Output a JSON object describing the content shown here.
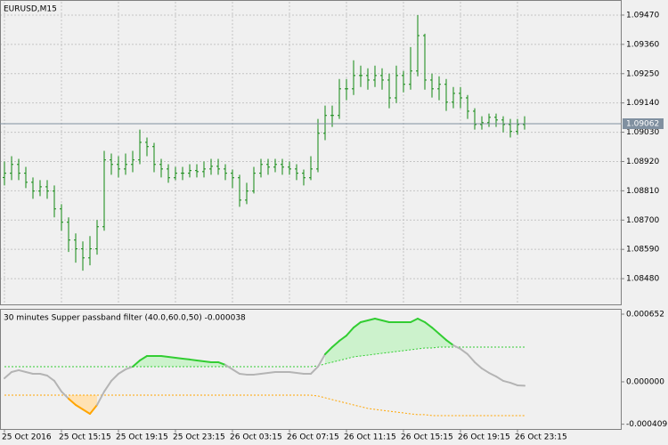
{
  "chart_data": [
    {
      "type": "ohlc",
      "title": "EURUSD,M15",
      "categories": [
        "25 Oct 2016",
        null,
        null,
        null,
        null,
        null,
        null,
        null,
        "25 Oct 15:15",
        null,
        null,
        null,
        null,
        null,
        null,
        null,
        "25 Oct 19:15",
        null,
        null,
        null,
        null,
        null,
        null,
        null,
        "25 Oct 23:15",
        null,
        null,
        null,
        null,
        null,
        null,
        null,
        "26 Oct 03:15",
        null,
        null,
        null,
        null,
        null,
        null,
        null,
        "26 Oct 07:15",
        null,
        null,
        null,
        null,
        null,
        null,
        null,
        "26 Oct 11:15",
        null,
        null,
        null,
        null,
        null,
        null,
        null,
        "26 Oct 15:15",
        null,
        null,
        null,
        null,
        null,
        null,
        null,
        "26 Oct 19:15",
        null,
        null,
        null,
        null,
        null,
        null,
        null,
        "26 Oct 23:15",
        null
      ],
      "open": [
        1.0886,
        1.08876,
        1.08909,
        1.08876,
        1.08842,
        1.08809,
        1.08825,
        1.08809,
        1.08742,
        1.08692,
        1.08625,
        1.08592,
        1.08558,
        1.08592,
        1.08675,
        1.08926,
        1.08909,
        1.08892,
        1.08909,
        1.08926,
        1.08992,
        1.08976,
        1.08909,
        1.08892,
        1.08859,
        1.08876,
        1.08876,
        1.08886,
        1.08882,
        1.08892,
        1.08902,
        1.08892,
        1.08876,
        1.08859,
        1.08775,
        1.08809,
        1.08876,
        1.08909,
        1.08899,
        1.08909,
        1.08899,
        1.08892,
        1.08876,
        1.08859,
        1.08892,
        1.09026,
        1.09093,
        1.09093,
        1.09193,
        1.09193,
        1.09243,
        1.09243,
        1.09226,
        1.09243,
        1.09226,
        1.09159,
        1.09243,
        1.0921,
        1.0926,
        1.09393,
        1.09226,
        1.09193,
        1.0921,
        1.09143,
        1.09176,
        1.09159,
        1.09109,
        1.09059,
        1.09066,
        1.09086,
        1.09076,
        1.09059,
        1.09033,
        1.09059
      ],
      "high": [
        1.0892,
        1.0894,
        1.0893,
        1.089,
        1.0886,
        1.0885,
        1.0885,
        1.0883,
        1.0876,
        1.0871,
        1.0865,
        1.0862,
        1.0864,
        1.087,
        1.0896,
        1.0895,
        1.0894,
        1.0895,
        1.0896,
        1.0904,
        1.0901,
        1.0899,
        1.0893,
        1.0891,
        1.089,
        1.089,
        1.0891,
        1.0891,
        1.0892,
        1.0893,
        1.0893,
        1.0891,
        1.0889,
        1.0887,
        1.0884,
        1.089,
        1.0893,
        1.0893,
        1.0893,
        1.0893,
        1.0892,
        1.0891,
        1.0889,
        1.0894,
        1.0908,
        1.0913,
        1.0913,
        1.0923,
        1.0923,
        1.093,
        1.0928,
        1.0927,
        1.0928,
        1.0927,
        1.0925,
        1.0928,
        1.0926,
        1.0935,
        1.0947,
        1.094,
        1.0925,
        1.0924,
        1.0923,
        1.092,
        1.092,
        1.0917,
        1.0912,
        1.0909,
        1.091,
        1.091,
        1.0909,
        1.0908,
        1.0908,
        1.0909
      ],
      "low": [
        1.0883,
        1.0885,
        1.0885,
        1.0882,
        1.0878,
        1.0879,
        1.0878,
        1.0871,
        1.0866,
        1.0858,
        1.0854,
        1.0851,
        1.0853,
        1.0857,
        1.0866,
        1.0887,
        1.0886,
        1.0887,
        1.0888,
        1.0891,
        1.0894,
        1.0888,
        1.0886,
        1.0884,
        1.0885,
        1.0885,
        1.0886,
        1.0886,
        1.0886,
        1.0887,
        1.0887,
        1.0885,
        1.0882,
        1.0875,
        1.0876,
        1.088,
        1.0886,
        1.0887,
        1.0888,
        1.0887,
        1.0887,
        1.0885,
        1.0883,
        1.0885,
        1.0888,
        1.09,
        1.0905,
        1.0908,
        1.0915,
        1.0917,
        1.092,
        1.0919,
        1.092,
        1.0919,
        1.0912,
        1.0914,
        1.0918,
        1.0919,
        1.0924,
        1.0919,
        1.0916,
        1.0915,
        1.0911,
        1.0912,
        1.0912,
        1.0908,
        1.0904,
        1.0904,
        1.0905,
        1.0905,
        1.0903,
        1.0901,
        1.0902,
        1.0904
      ],
      "close": [
        1.08876,
        1.08909,
        1.08876,
        1.08842,
        1.08809,
        1.08825,
        1.08809,
        1.08742,
        1.08692,
        1.08625,
        1.08592,
        1.08558,
        1.08592,
        1.08675,
        1.08926,
        1.08909,
        1.08892,
        1.08909,
        1.08926,
        1.08992,
        1.08976,
        1.08909,
        1.08892,
        1.08859,
        1.08876,
        1.08876,
        1.08886,
        1.08882,
        1.08892,
        1.08902,
        1.08892,
        1.08876,
        1.08859,
        1.08775,
        1.08809,
        1.08876,
        1.08909,
        1.08899,
        1.08909,
        1.08899,
        1.08892,
        1.08876,
        1.08859,
        1.08892,
        1.09026,
        1.09093,
        1.09093,
        1.09193,
        1.09193,
        1.09243,
        1.09243,
        1.09226,
        1.09243,
        1.09226,
        1.09159,
        1.09243,
        1.0921,
        1.0926,
        1.09393,
        1.09226,
        1.09193,
        1.0921,
        1.09143,
        1.09176,
        1.09159,
        1.09109,
        1.09059,
        1.09066,
        1.09086,
        1.09076,
        1.09059,
        1.09033,
        1.09059,
        1.09062
      ],
      "color": "#118811",
      "ylim": [
        1.0838,
        1.0952
      ],
      "yticks": [
        {
          "value": 1.0947,
          "label": "1.09470"
        },
        {
          "value": 1.0936,
          "label": "1.09360"
        },
        {
          "value": 1.0925,
          "label": "1.09250"
        },
        {
          "value": 1.0914,
          "label": "1.09140"
        },
        {
          "value": 1.0903,
          "label": "1.09030"
        },
        {
          "value": 1.0892,
          "label": "1.08920"
        },
        {
          "value": 1.0881,
          "label": "1.08810"
        },
        {
          "value": 1.087,
          "label": "1.08700"
        },
        {
          "value": 1.0859,
          "label": "1.08590"
        },
        {
          "value": 1.0848,
          "label": "1.08480"
        }
      ],
      "grid": true,
      "current_price": {
        "value": 1.09062,
        "label": "1.09062"
      },
      "current_price_color": "#8090a0"
    },
    {
      "type": "line",
      "title": "30 minutes Supper passband filter (40.0,60.0,50) -0.000038",
      "values": [
        3.4e-05,
        9.4e-05,
        0.000112,
        9.4e-05,
        7.7e-05,
        7.7e-05,
        6e-05,
        9e-06,
        -9.4e-05,
        -0.000163,
        -0.000223,
        -0.000266,
        -0.000309,
        -0.000223,
        -9.4e-05,
        9e-06,
        7.7e-05,
        0.00012,
        0.000146,
        0.000206,
        0.000249,
        0.000249,
        0.000249,
        0.00024,
        0.000232,
        0.000223,
        0.000215,
        0.000206,
        0.000197,
        0.000189,
        0.000189,
        0.000163,
        0.00012,
        7.7e-05,
        6.9e-05,
        6.9e-05,
        7.7e-05,
        8.6e-05,
        9.4e-05,
        9.4e-05,
        9.4e-05,
        8.6e-05,
        7.7e-05,
        7.7e-05,
        0.000146,
        0.000266,
        0.000335,
        0.000395,
        0.000446,
        0.000523,
        0.000575,
        0.000592,
        0.000609,
        0.000592,
        0.000575,
        0.000575,
        0.000575,
        0.000575,
        0.000609,
        0.000575,
        0.000523,
        0.000463,
        0.000403,
        0.000352,
        0.000317,
        0.000266,
        0.000189,
        0.000129,
        8.6e-05,
        5.1e-05,
        9e-06,
        -9e-06,
        -3.4e-05,
        -3.8e-05
      ],
      "upper": [
        0.000146,
        0.000146,
        0.000146,
        0.000146,
        0.000146,
        0.000146,
        0.000146,
        0.000146,
        0.000146,
        0.000146,
        0.000146,
        0.000146,
        0.000146,
        0.000146,
        0.000146,
        0.000146,
        0.000146,
        0.000146,
        0.000146,
        0.000146,
        0.000146,
        0.000146,
        0.000146,
        0.000146,
        0.000146,
        0.000146,
        0.000146,
        0.000146,
        0.000146,
        0.000146,
        0.000146,
        0.000146,
        0.000146,
        0.000146,
        0.000146,
        0.000146,
        0.000146,
        0.000146,
        0.000146,
        0.000146,
        0.000146,
        0.000146,
        0.000146,
        0.000146,
        0.000154,
        0.000172,
        0.000189,
        0.000206,
        0.000223,
        0.00024,
        0.000249,
        0.000257,
        0.000266,
        0.000275,
        0.000283,
        0.000292,
        0.0003,
        0.000309,
        0.000317,
        0.000326,
        0.000326,
        0.000335,
        0.000335,
        0.000335,
        0.000335,
        0.000335,
        0.000335,
        0.000335,
        0.000335,
        0.000335,
        0.000335,
        0.000335,
        0.000335,
        0.000335
      ],
      "lower": [
        -0.000129,
        -0.000129,
        -0.000129,
        -0.000129,
        -0.000129,
        -0.000129,
        -0.000129,
        -0.000129,
        -0.000129,
        -0.000129,
        -0.000129,
        -0.000129,
        -0.000129,
        -0.000129,
        -0.000129,
        -0.000129,
        -0.000129,
        -0.000129,
        -0.000129,
        -0.000129,
        -0.000129,
        -0.000129,
        -0.000129,
        -0.000129,
        -0.000129,
        -0.000129,
        -0.000129,
        -0.000129,
        -0.000129,
        -0.000129,
        -0.000129,
        -0.000129,
        -0.000129,
        -0.000129,
        -0.000129,
        -0.000129,
        -0.000129,
        -0.000129,
        -0.000129,
        -0.000129,
        -0.000129,
        -0.000129,
        -0.000129,
        -0.000129,
        -0.000137,
        -0.000154,
        -0.000172,
        -0.000189,
        -0.000206,
        -0.000223,
        -0.00024,
        -0.000257,
        -0.000266,
        -0.000275,
        -0.000283,
        -0.000292,
        -0.0003,
        -0.000309,
        -0.000317,
        -0.000317,
        -0.000326,
        -0.000326,
        -0.000326,
        -0.000326,
        -0.000326,
        -0.000326,
        -0.000326,
        -0.000326,
        -0.000326,
        -0.000326,
        -0.000326,
        -0.000326,
        -0.000326,
        -0.000326
      ],
      "color": "#b4b4b4",
      "up_color": "#32cd32",
      "down_color": "#ffa500",
      "up_fill": "#ccf2cc",
      "down_fill": "#ffe2b3",
      "ylim": [
        -0.000455,
        0.000695
      ],
      "yticks": [
        0.000652,
        {
          "value": 0,
          "label": "0.000000"
        },
        -0.000409
      ]
    }
  ]
}
